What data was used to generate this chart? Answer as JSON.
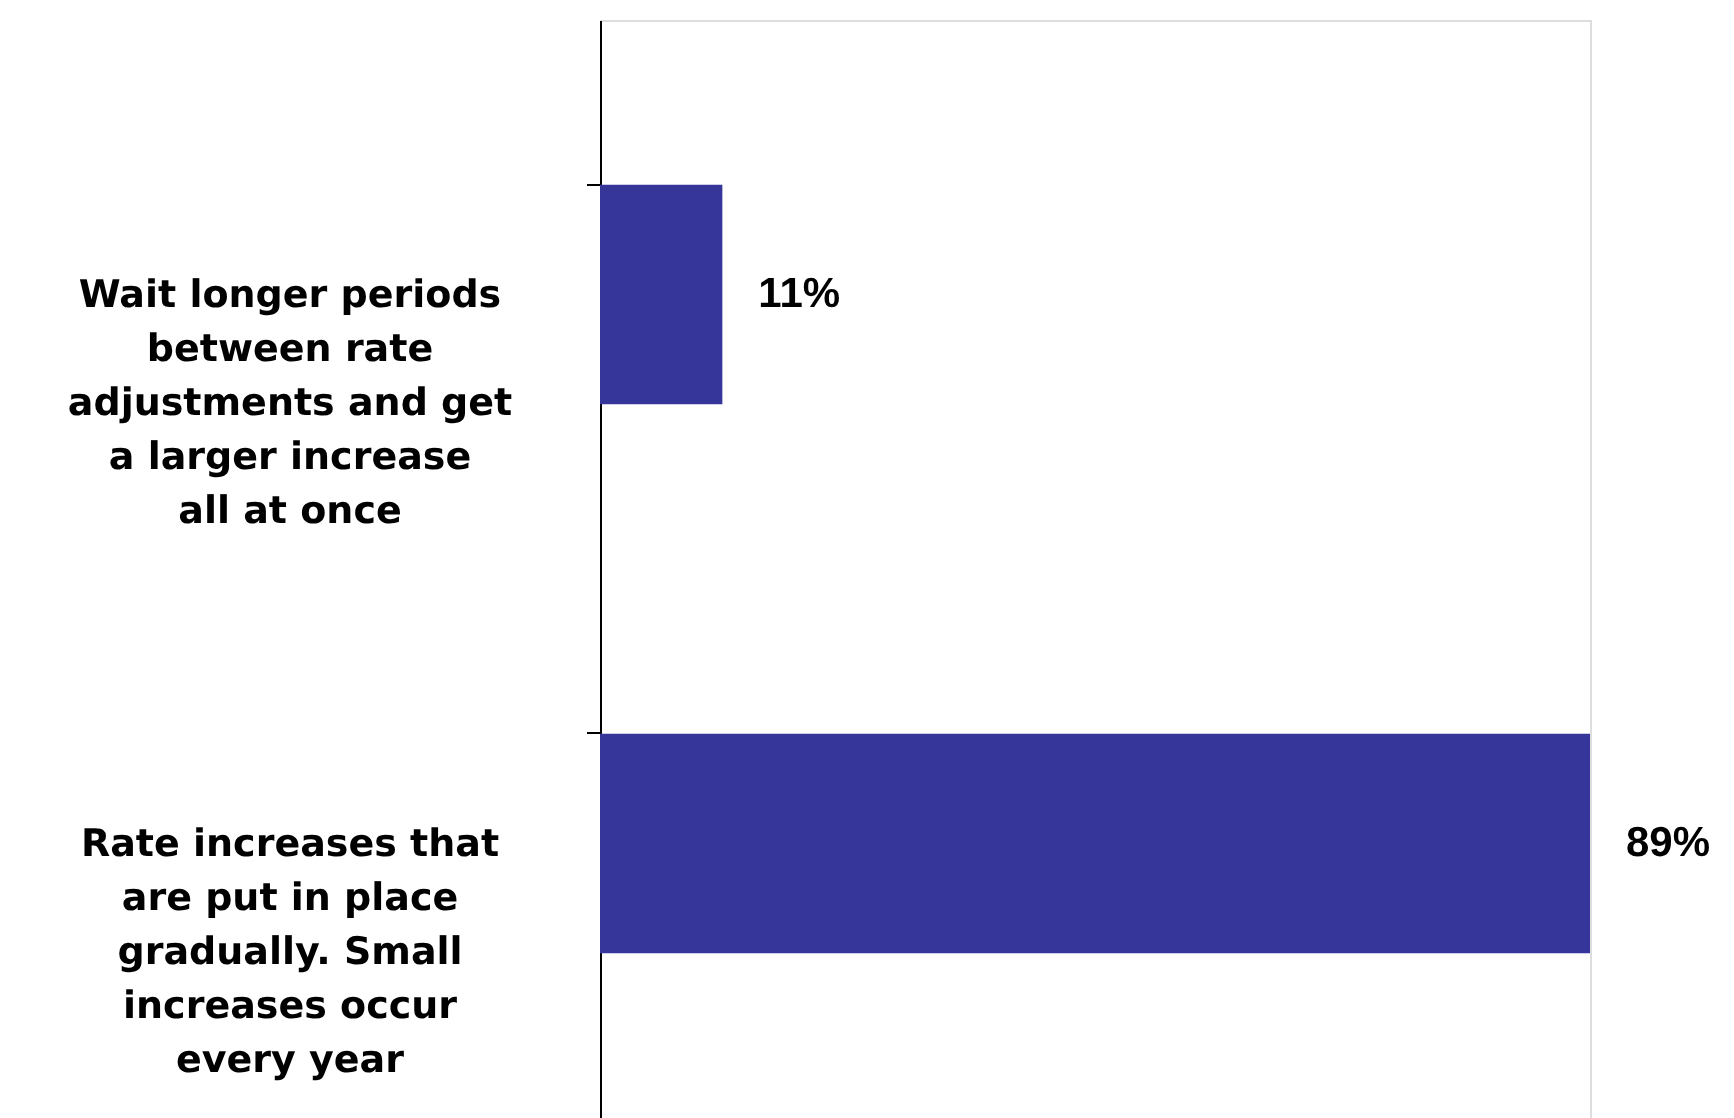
{
  "chart_data": {
    "type": "bar",
    "orientation": "horizontal",
    "categories": [
      "Wait longer periods between rate adjustments and get a larger increase all at once",
      "Rate increases that are put in place gradually. Small increases occur every year"
    ],
    "values": [
      11,
      89
    ],
    "value_labels": [
      "11%",
      "89%"
    ],
    "color": "#35359a",
    "grid": false
  }
}
